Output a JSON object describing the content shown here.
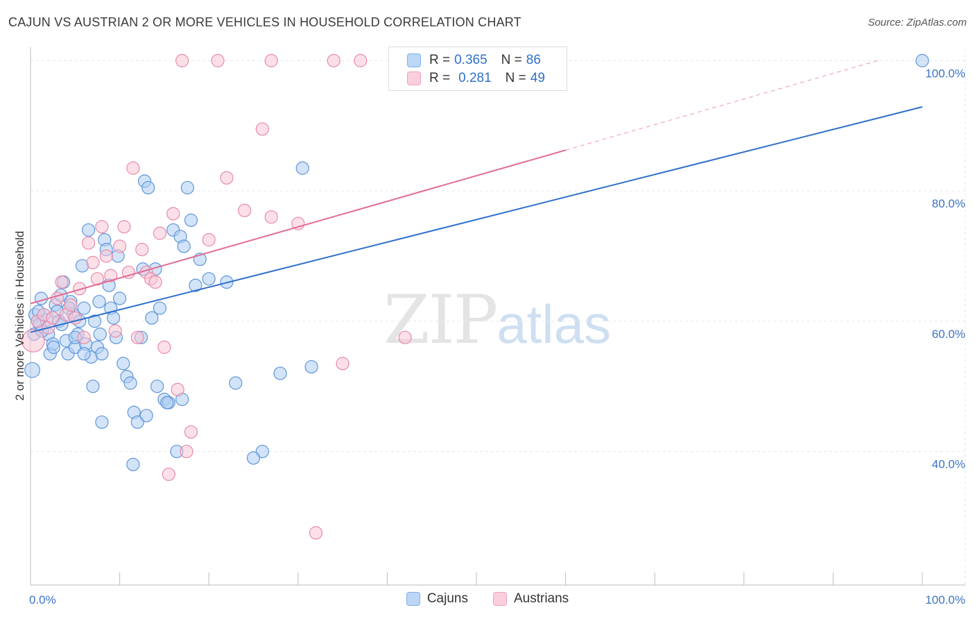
{
  "header": {
    "title": "CAJUN VS AUSTRIAN 2 OR MORE VEHICLES IN HOUSEHOLD CORRELATION CHART",
    "source": "Source: ZipAtlas.com"
  },
  "watermark": {
    "zip": "ZIP",
    "atlas": "atlas"
  },
  "legend": {
    "r_label": "R =",
    "n_label": "N =",
    "rows": [
      {
        "name": "Cajuns",
        "r": "0.365",
        "n": "86",
        "color": "#7fb0ea"
      },
      {
        "name": "Austrians",
        "r": "0.281",
        "n": "49",
        "color": "#f2a0bb"
      }
    ]
  },
  "colors": {
    "cajun_fill": "#aecdf3",
    "cajun_stroke": "#5e95db",
    "cajun_line": "#2e6fcc",
    "austrian_fill": "#f8c6d6",
    "austrian_stroke": "#e88aa9",
    "austrian_line": "#e26b93",
    "tick_text": "#3b74c7",
    "grid": "#e6e6e6"
  },
  "chart_data": {
    "type": "scatter",
    "title": "CAJUN VS AUSTRIAN 2 OR MORE VEHICLES IN HOUSEHOLD CORRELATION CHART",
    "xlabel": "",
    "ylabel": "2 or more Vehicles in Household",
    "xlim": [
      0,
      100
    ],
    "ylim": [
      19.5,
      101
    ],
    "x_tick_labels": {
      "0": "0.0%",
      "100": "100.0%"
    },
    "y_ticks": [
      40,
      60,
      80,
      100
    ],
    "y_tick_labels": [
      "40.0%",
      "60.0%",
      "80.0%",
      "100.0%"
    ],
    "x_minor_ticks": [
      10,
      20,
      30,
      40,
      50,
      60,
      70,
      80,
      90,
      100
    ],
    "grid": true,
    "legend_position": "bottom-center",
    "series": [
      {
        "name": "Cajuns",
        "r": 0.365,
        "n": 86,
        "trend": {
          "x1": 0,
          "y1": 58.3,
          "x2": 100,
          "y2": 92.9,
          "dashed_from": null
        },
        "points": [
          [
            0.2,
            52.5,
            12
          ],
          [
            0.4,
            58,
            10
          ],
          [
            0.5,
            61,
            10
          ],
          [
            0.8,
            60,
            10
          ],
          [
            1,
            59.5,
            10
          ],
          [
            1.2,
            63.5,
            10
          ],
          [
            1.5,
            61,
            10
          ],
          [
            1.8,
            60.2,
            10
          ],
          [
            2,
            58,
            10
          ],
          [
            2.2,
            55,
            10
          ],
          [
            2.5,
            56.5,
            10
          ],
          [
            2.8,
            62.5,
            10
          ],
          [
            3,
            61.5,
            10
          ],
          [
            3.2,
            60,
            10
          ],
          [
            3.5,
            59.5,
            10
          ],
          [
            3.7,
            66,
            10
          ],
          [
            4,
            57,
            10
          ],
          [
            4.2,
            55,
            10
          ],
          [
            4.5,
            63,
            10
          ],
          [
            4.8,
            61,
            10
          ],
          [
            5,
            56,
            10
          ],
          [
            5.3,
            58,
            10
          ],
          [
            5.5,
            60,
            10
          ],
          [
            5.8,
            68.5,
            10
          ],
          [
            6,
            62,
            10
          ],
          [
            6.2,
            56.5,
            10
          ],
          [
            6.5,
            74,
            10
          ],
          [
            6.8,
            54.5,
            10
          ],
          [
            7,
            50,
            10
          ],
          [
            7.2,
            60,
            10
          ],
          [
            7.5,
            56,
            10
          ],
          [
            7.8,
            58,
            10
          ],
          [
            8,
            55,
            10
          ],
          [
            8.3,
            72.5,
            10
          ],
          [
            8.5,
            71,
            10
          ],
          [
            8.8,
            65.5,
            10
          ],
          [
            9,
            62,
            10
          ],
          [
            9.3,
            60.5,
            10
          ],
          [
            9.6,
            57.5,
            10
          ],
          [
            10,
            63.5,
            10
          ],
          [
            10.4,
            53.5,
            10
          ],
          [
            10.8,
            51.5,
            10
          ],
          [
            11.2,
            50.5,
            10
          ],
          [
            11.6,
            46,
            10
          ],
          [
            12,
            44.5,
            10
          ],
          [
            12.4,
            57.5,
            10
          ],
          [
            12.6,
            68,
            10
          ],
          [
            12.8,
            81.5,
            10
          ],
          [
            13.2,
            80.5,
            10
          ],
          [
            13.6,
            60.5,
            10
          ],
          [
            14,
            68,
            10
          ],
          [
            14.5,
            62,
            10
          ],
          [
            15,
            48,
            10
          ],
          [
            15.5,
            47.5,
            10
          ],
          [
            16,
            74,
            10
          ],
          [
            16.4,
            40,
            10
          ],
          [
            16.8,
            73,
            10
          ],
          [
            17.2,
            71.5,
            10
          ],
          [
            17.6,
            80.5,
            10
          ],
          [
            18,
            75.5,
            10
          ],
          [
            18.5,
            65.5,
            10
          ],
          [
            19,
            69.5,
            10
          ],
          [
            20,
            66.5,
            10
          ],
          [
            22,
            66,
            10
          ],
          [
            23,
            50.5,
            10
          ],
          [
            26,
            40,
            10
          ],
          [
            28,
            52,
            10
          ],
          [
            30.5,
            83.5,
            10
          ],
          [
            31.5,
            53,
            10
          ],
          [
            25,
            39,
            10
          ],
          [
            11.5,
            38,
            10
          ],
          [
            8,
            44.5,
            10
          ],
          [
            6,
            55,
            10
          ],
          [
            5,
            57.5,
            10
          ],
          [
            4.3,
            62,
            10
          ],
          [
            9.8,
            70,
            10
          ],
          [
            13,
            45.5,
            10
          ],
          [
            15.3,
            47.5,
            10
          ],
          [
            14.2,
            50,
            10
          ],
          [
            17,
            48,
            10
          ],
          [
            2.6,
            56,
            10
          ],
          [
            3.4,
            64,
            10
          ],
          [
            1.3,
            58.5,
            10
          ],
          [
            0.9,
            61.5,
            10
          ],
          [
            7.7,
            63,
            10
          ],
          [
            100,
            100,
            10
          ]
        ]
      },
      {
        "name": "Austrians",
        "r": 0.281,
        "n": 49,
        "trend": {
          "x1": 0,
          "y1": 62.7,
          "x2": 95,
          "y2": 100,
          "dashed_from": 60
        },
        "points": [
          [
            0.3,
            57,
            18
          ],
          [
            0.8,
            60,
            10
          ],
          [
            1.5,
            61,
            10
          ],
          [
            2,
            59,
            10
          ],
          [
            2.5,
            60.5,
            10
          ],
          [
            3,
            63.5,
            10
          ],
          [
            3.5,
            66,
            10
          ],
          [
            4,
            61,
            10
          ],
          [
            4.5,
            62.5,
            10
          ],
          [
            5,
            60.5,
            10
          ],
          [
            5.5,
            65,
            10
          ],
          [
            6,
            57.5,
            10
          ],
          [
            6.5,
            72,
            10
          ],
          [
            7,
            69,
            10
          ],
          [
            7.5,
            66.5,
            10
          ],
          [
            8,
            74.5,
            10
          ],
          [
            8.5,
            70,
            10
          ],
          [
            9,
            67,
            10
          ],
          [
            9.5,
            58.5,
            10
          ],
          [
            10,
            71.5,
            10
          ],
          [
            10.5,
            74.5,
            10
          ],
          [
            11,
            67.5,
            10
          ],
          [
            11.5,
            83.5,
            10
          ],
          [
            12,
            57.5,
            10
          ],
          [
            12.5,
            71,
            10
          ],
          [
            13,
            67.5,
            10
          ],
          [
            13.5,
            66.5,
            10
          ],
          [
            14,
            66,
            10
          ],
          [
            14.5,
            73.5,
            10
          ],
          [
            15,
            56,
            10
          ],
          [
            15.5,
            36.5,
            10
          ],
          [
            16,
            76.5,
            10
          ],
          [
            16.5,
            49.5,
            10
          ],
          [
            17.5,
            40,
            10
          ],
          [
            18,
            43,
            10
          ],
          [
            20,
            72.5,
            10
          ],
          [
            22,
            82,
            10
          ],
          [
            24,
            77,
            10
          ],
          [
            26,
            89.5,
            10
          ],
          [
            27,
            76,
            10
          ],
          [
            30,
            75,
            10
          ],
          [
            32,
            27.5,
            10
          ],
          [
            35,
            53.5,
            10
          ],
          [
            42,
            57.5,
            10
          ],
          [
            17,
            100,
            10
          ],
          [
            21,
            100,
            10
          ],
          [
            27,
            100,
            10
          ],
          [
            34,
            100,
            10
          ],
          [
            37,
            100,
            10
          ]
        ]
      }
    ]
  }
}
